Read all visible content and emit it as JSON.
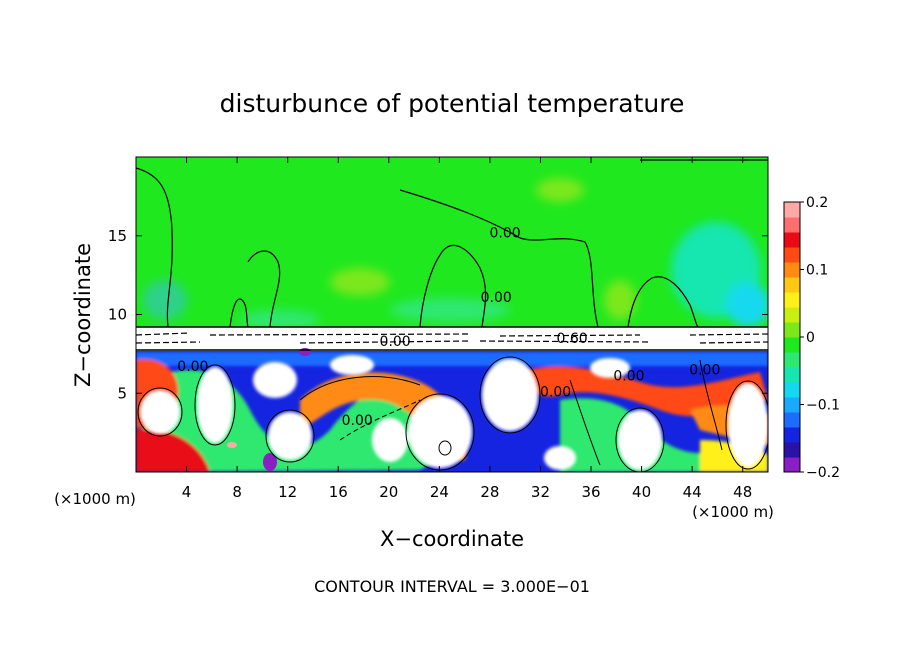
{
  "chart_data": {
    "type": "heatmap",
    "title": "disturbunce of potential temperature",
    "xlabel": "X−coordinate",
    "ylabel": "Z−coordinate",
    "x_unit": "(×1000 m)",
    "z_unit": "(×1000 m)",
    "footer": "CONTOUR INTERVAL = 3.000E−01",
    "xlim": [
      0,
      50
    ],
    "ylim": [
      0,
      20
    ],
    "x_ticks": [
      4,
      8,
      12,
      16,
      20,
      24,
      28,
      32,
      36,
      40,
      44,
      48
    ],
    "y_ticks": [
      5,
      10,
      15
    ],
    "colorbar": {
      "range": [
        -0.2,
        0.2
      ],
      "tick_values": [
        0.2,
        0.1,
        0,
        -0.1,
        -0.2
      ],
      "tick_labels": [
        "0.2",
        "0.1",
        "0",
        "−0.1",
        "−0.2"
      ],
      "colors": [
        "#8a1fc4",
        "#2a12a8",
        "#1424e0",
        "#1e6cff",
        "#19a9ff",
        "#12d9f0",
        "#18e6b0",
        "#2ee870",
        "#1ee81e",
        "#7ce81a",
        "#c8ee12",
        "#fff01a",
        "#ffc814",
        "#ff8a14",
        "#ff4a14",
        "#e80a14",
        "#ff6e6e",
        "#ffa8a8"
      ]
    },
    "contour_labels": [
      {
        "text": "0.00",
        "x": 29.2,
        "z": 14.9
      },
      {
        "text": "0.00",
        "x": 28.5,
        "z": 10.8
      },
      {
        "text": "0.60",
        "x": 34.5,
        "z": 8.2
      },
      {
        "text": "0.00",
        "x": 20.5,
        "z": 8.0
      },
      {
        "text": "0.00",
        "x": 39.0,
        "z": 5.8
      },
      {
        "text": "0.00",
        "x": 33.2,
        "z": 4.8
      },
      {
        "text": "0.00",
        "x": 17.5,
        "z": 3.0
      },
      {
        "text": "0.00",
        "x": 4.5,
        "z": 6.4
      },
      {
        "text": "0.00",
        "x": 45.0,
        "z": 6.2
      }
    ]
  }
}
